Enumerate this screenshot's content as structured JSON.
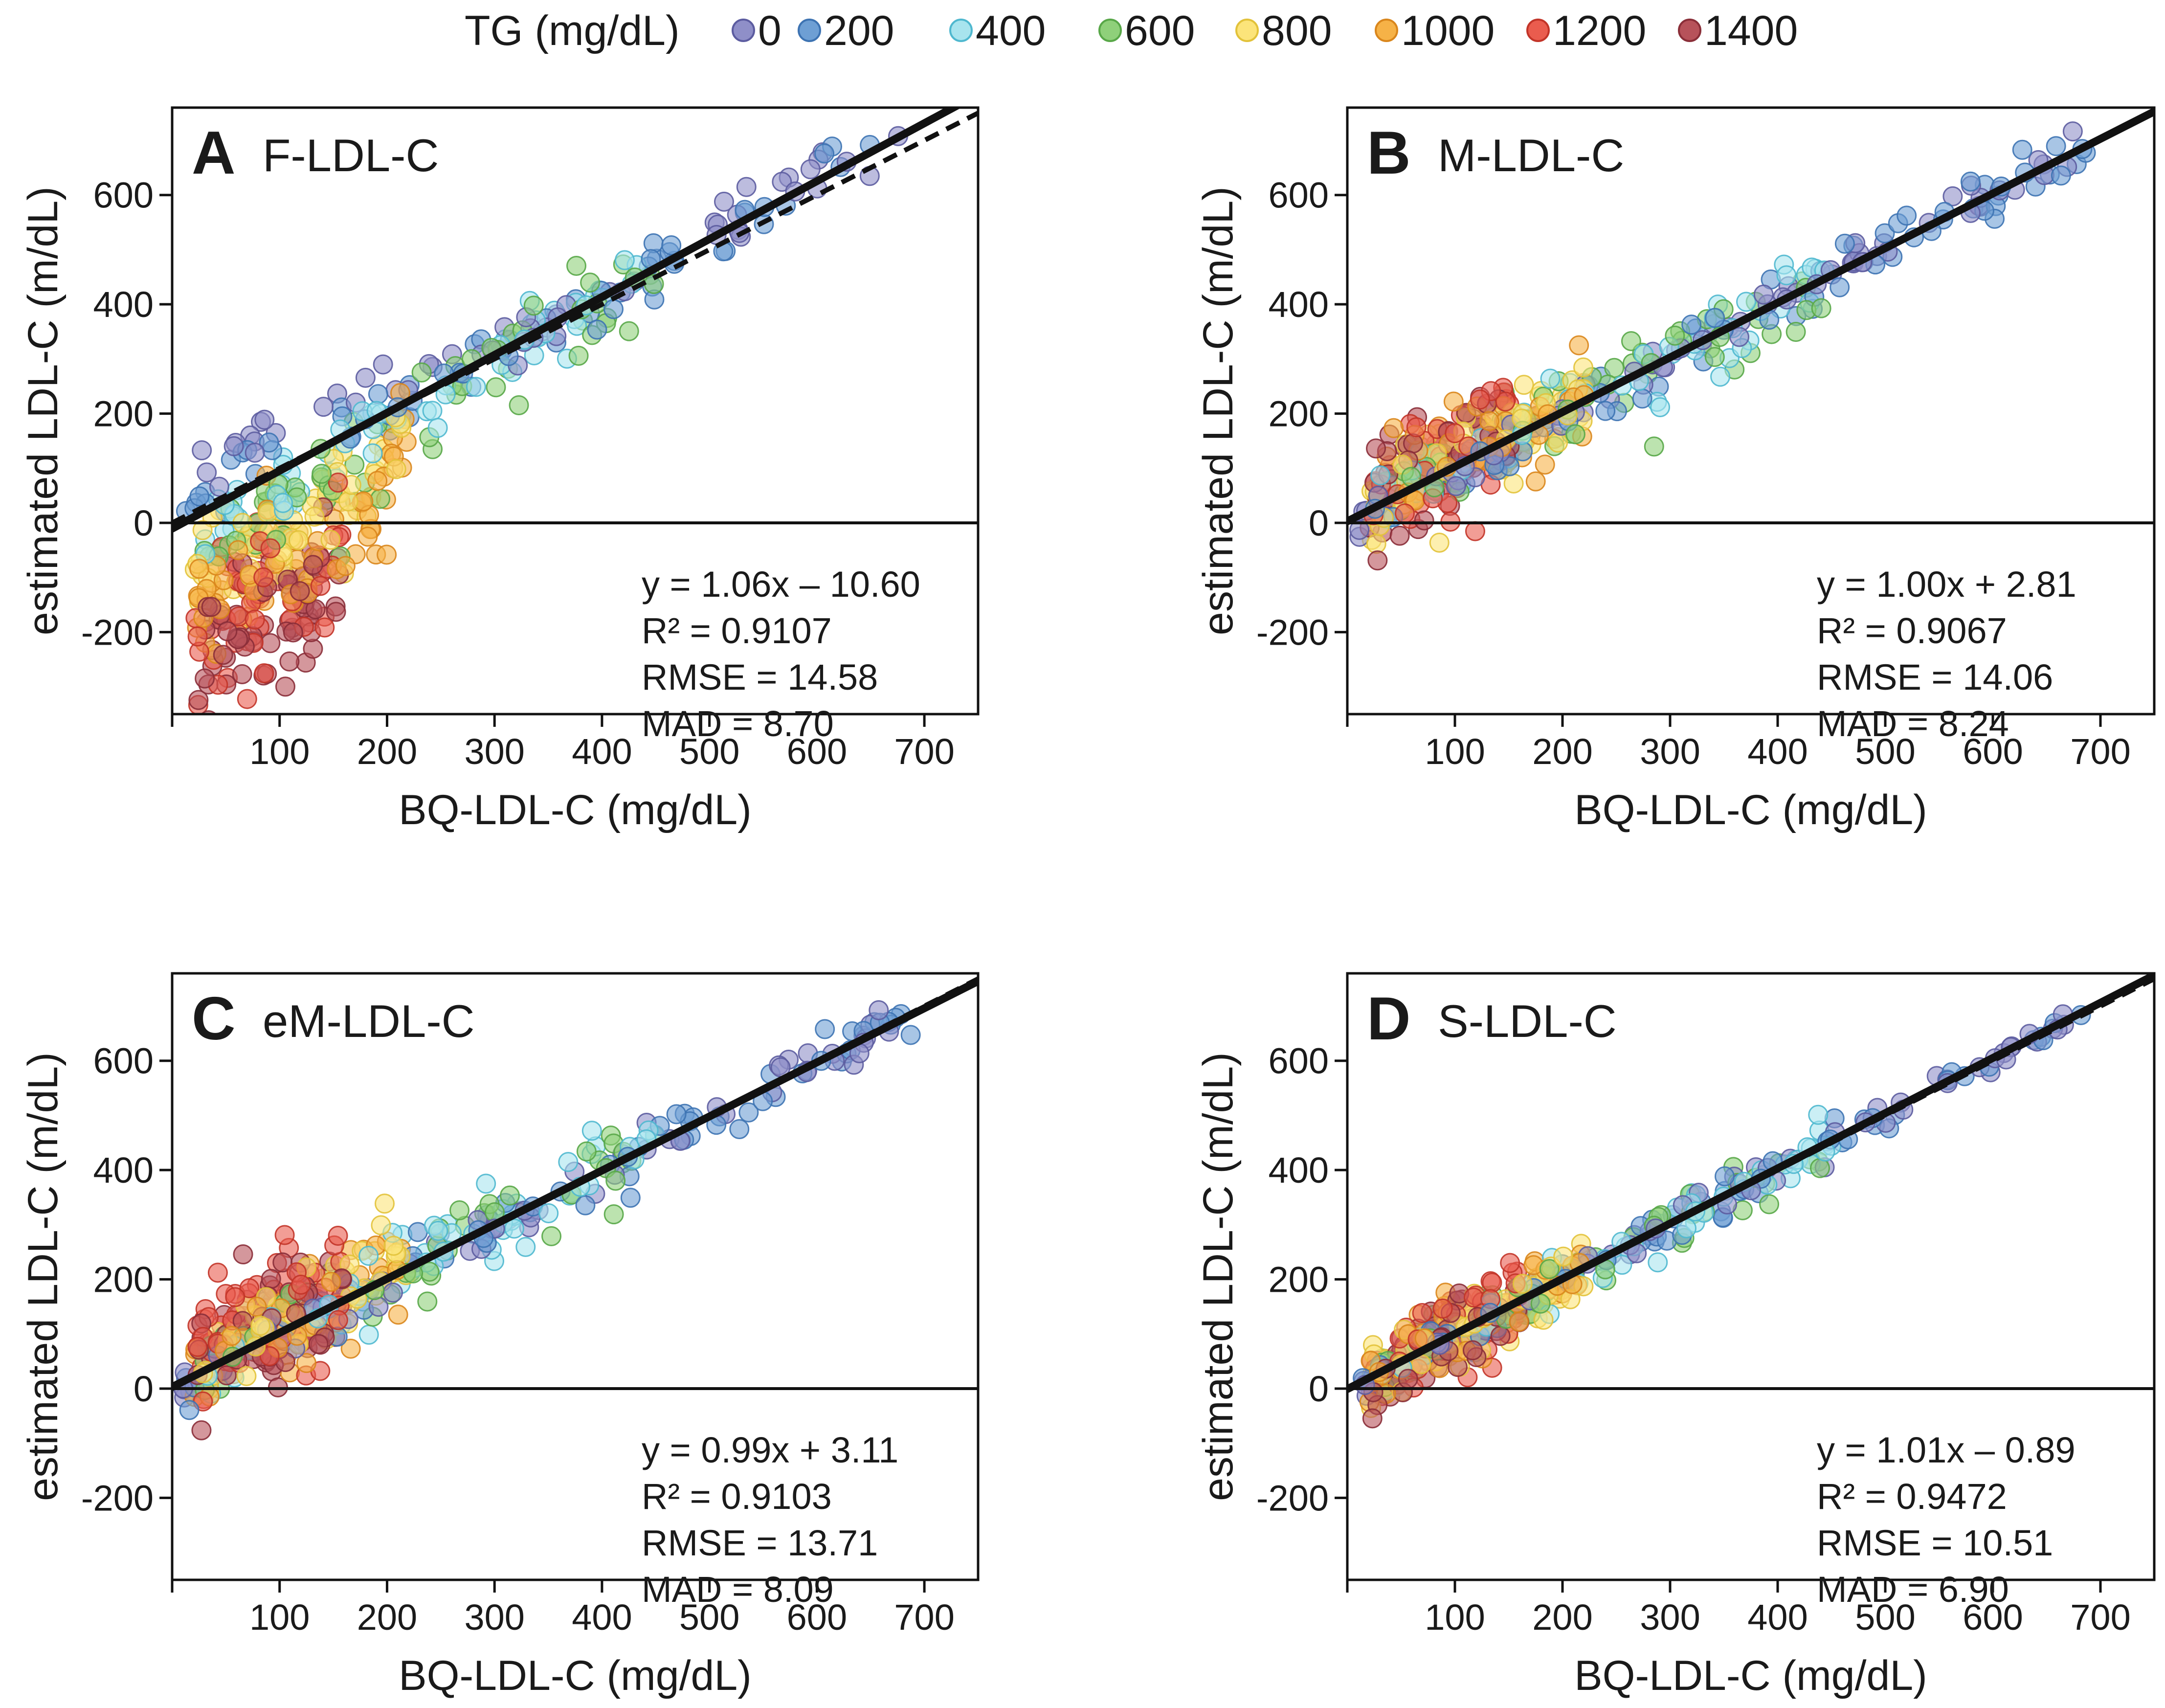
{
  "legend": {
    "title": "TG (mg/dL)",
    "entries": [
      {
        "label": "0",
        "color": "#8f8fc8",
        "stroke": "#5c5ca0"
      },
      {
        "label": "200",
        "color": "#6e9fd4",
        "stroke": "#3d73b2"
      },
      {
        "label": "400",
        "color": "#a8e4ee",
        "stroke": "#4fb8cf"
      },
      {
        "label": "600",
        "color": "#8fd07a",
        "stroke": "#58a748"
      },
      {
        "label": "800",
        "color": "#fce47a",
        "stroke": "#e2c23a"
      },
      {
        "label": "1000",
        "color": "#f6b247",
        "stroke": "#d9861c"
      },
      {
        "label": "1200",
        "color": "#ea5c4e",
        "stroke": "#c23428"
      },
      {
        "label": "1400",
        "color": "#b7525a",
        "stroke": "#8a2e38"
      }
    ]
  },
  "chart_data": [
    {
      "panel": "A",
      "title": "F-LDL-C",
      "type": "scatter",
      "xlabel": "BQ-LDL-C (mg/dL)",
      "ylabel": "estimated LDL-C (m/dL)",
      "xlim": [
        0,
        750
      ],
      "ylim": [
        -350,
        760
      ],
      "xticks": [
        100,
        200,
        300,
        400,
        500,
        600,
        700
      ],
      "yticks": [
        -200,
        0,
        200,
        400,
        600
      ],
      "fit": {
        "slope": 1.06,
        "intercept": -10.6
      },
      "show_identity": true,
      "stats": {
        "equation": "y = 1.06x – 10.60",
        "r2": "R² = 0.9107",
        "rmse": "RMSE = 14.58",
        "mad": "MAD = 8.70"
      },
      "scatter_model": {
        "slope": 1.06,
        "intercept": -10.6,
        "tg_effect": -0.25,
        "spread": 45
      }
    },
    {
      "panel": "B",
      "title": "M-LDL-C",
      "type": "scatter",
      "xlabel": "BQ-LDL-C (mg/dL)",
      "ylabel": "estimated LDL-C (m/dL)",
      "xlim": [
        0,
        750
      ],
      "ylim": [
        -350,
        760
      ],
      "xticks": [
        100,
        200,
        300,
        400,
        500,
        600,
        700
      ],
      "yticks": [
        -200,
        0,
        200,
        400,
        600
      ],
      "fit": {
        "slope": 1.0,
        "intercept": 2.81
      },
      "show_identity": false,
      "stats": {
        "equation": "y = 1.00x + 2.81",
        "r2": "R² = 0.9067",
        "rmse": "RMSE = 14.06",
        "mad": "MAD = 8.24"
      },
      "scatter_model": {
        "slope": 1.0,
        "intercept": 2.81,
        "tg_effect": 0.02,
        "spread": 40
      }
    },
    {
      "panel": "C",
      "title": "eM-LDL-C",
      "type": "scatter",
      "xlabel": "BQ-LDL-C (mg/dL)",
      "ylabel": "estimated LDL-C (m/dL)",
      "xlim": [
        0,
        750
      ],
      "ylim": [
        -350,
        760
      ],
      "xticks": [
        100,
        200,
        300,
        400,
        500,
        600,
        700
      ],
      "yticks": [
        -200,
        0,
        200,
        400,
        600
      ],
      "fit": {
        "slope": 0.99,
        "intercept": 3.11
      },
      "show_identity": true,
      "stats": {
        "equation": "y = 0.99x + 3.11",
        "r2": "R² = 0.9103",
        "rmse": "RMSE = 13.71",
        "mad": "MAD = 8.09"
      },
      "scatter_model": {
        "slope": 0.99,
        "intercept": 3.11,
        "tg_effect": 0.03,
        "spread": 40
      }
    },
    {
      "panel": "D",
      "title": "S-LDL-C",
      "type": "scatter",
      "xlabel": "BQ-LDL-C (mg/dL)",
      "ylabel": "estimated LDL-C (m/dL)",
      "xlim": [
        0,
        750
      ],
      "ylim": [
        -350,
        760
      ],
      "xticks": [
        100,
        200,
        300,
        400,
        500,
        600,
        700
      ],
      "yticks": [
        -200,
        0,
        200,
        400,
        600
      ],
      "fit": {
        "slope": 1.01,
        "intercept": -0.89
      },
      "show_identity": true,
      "stats": {
        "equation": "y = 1.01x – 0.89",
        "r2": "R² = 0.9472",
        "rmse": "RMSE = 10.51",
        "mad": "MAD = 6.90"
      },
      "scatter_model": {
        "slope": 1.01,
        "intercept": -0.89,
        "tg_effect": 0.0,
        "spread": 28
      }
    }
  ]
}
